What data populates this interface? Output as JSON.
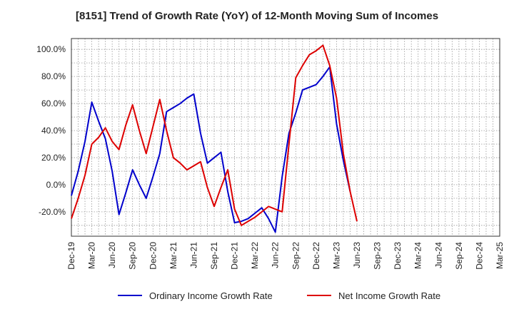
{
  "chart_data": {
    "type": "line",
    "title": "[8151]  Trend of Growth Rate (YoY) of 12-Month Moving Sum of Incomes",
    "xlabel": "",
    "ylabel": "",
    "ylim": [
      -38,
      108
    ],
    "yticks": [
      -20,
      0,
      20,
      40,
      60,
      80,
      100
    ],
    "ytick_labels": [
      "-20.0%",
      "0.0%",
      "20.0%",
      "40.0%",
      "60.0%",
      "80.0%",
      "100.0%"
    ],
    "x_labels": [
      "Dec-19",
      "Mar-20",
      "Jun-20",
      "Sep-20",
      "Dec-20",
      "Mar-21",
      "Jun-21",
      "Sep-21",
      "Dec-21",
      "Mar-22",
      "Jun-22",
      "Sep-22",
      "Dec-22",
      "Mar-23",
      "Jun-23",
      "Sep-23",
      "Dec-23",
      "Mar-24",
      "Jun-24",
      "Sep-24",
      "Dec-24",
      "Mar-25"
    ],
    "grid": true,
    "legend_position": "bottom",
    "series": [
      {
        "name": "Ordinary Income Growth Rate",
        "color": "#0000cc",
        "values": [
          -8,
          10,
          32,
          61,
          47,
          34,
          10,
          -22,
          -6,
          11,
          0,
          -10,
          6,
          23,
          54,
          57,
          60,
          64,
          67,
          38,
          16,
          20,
          24,
          -5,
          -28,
          -27,
          -25,
          -21,
          -17,
          -25,
          -35,
          6,
          38,
          53,
          70,
          72,
          74,
          80,
          87,
          45,
          18,
          -5
        ]
      },
      {
        "name": "Net Income Growth Rate",
        "color": "#dd0000",
        "values": [
          -25,
          -10,
          7,
          30,
          35,
          42,
          32,
          26,
          44,
          59,
          40,
          23,
          43,
          63,
          40,
          20,
          16,
          11,
          14,
          17,
          -2,
          -16,
          -2,
          11,
          -18,
          -30,
          -27,
          -24,
          -20,
          -16,
          -18,
          -20,
          30,
          79,
          88,
          96,
          99,
          103,
          88,
          64,
          23,
          -5,
          -27
        ]
      }
    ]
  }
}
